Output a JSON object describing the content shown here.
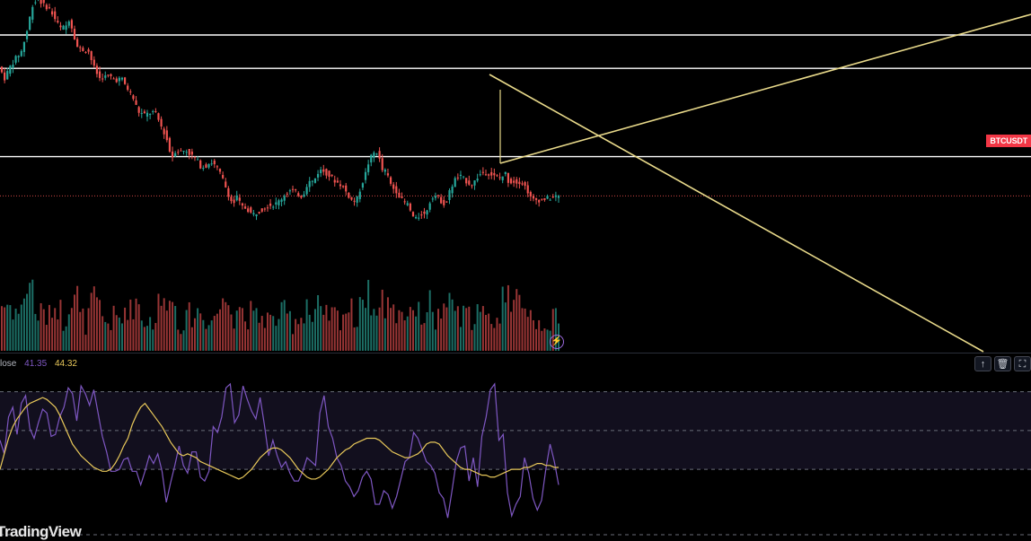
{
  "symbol": "BTCUSDT",
  "watermark": "TradingView",
  "rsi_legend": {
    "label": "lose",
    "rsi_value": "41.35",
    "ma_value": "44.32"
  },
  "pane_buttons": [
    {
      "name": "move-up-icon",
      "glyph": "↑"
    },
    {
      "name": "delete-icon",
      "glyph": "🗑"
    },
    {
      "name": "maximize-icon",
      "glyph": "⛶"
    }
  ],
  "colors": {
    "up": "#26a69a",
    "down": "#ef5350",
    "up_vol": "#1f7a70",
    "down_vol": "#a83b3b",
    "drawing": "#e8d98a",
    "levels": "#ffffff",
    "rsi": "#7e57c2",
    "rsi_ma": "#e8c85a",
    "rsi_band": "#120f1e"
  },
  "chart_data": [
    {
      "type": "candlestick",
      "series": [
        {
          "name": "BTCUSDT",
          "anchors": [
            [
              0,
              195
            ],
            [
              4,
              188
            ],
            [
              8,
              195
            ],
            [
              12,
              200
            ],
            [
              16,
              204
            ],
            [
              20,
              216
            ],
            [
              24,
              232
            ],
            [
              28,
              236
            ],
            [
              32,
              232
            ],
            [
              36,
              230
            ],
            [
              40,
              224
            ],
            [
              44,
              218
            ],
            [
              48,
              219
            ],
            [
              50,
              224
            ],
            [
              53,
              217
            ],
            [
              56,
              207
            ],
            [
              60,
              205
            ],
            [
              64,
              205
            ],
            [
              68,
              195
            ],
            [
              72,
              188
            ],
            [
              76,
              189
            ],
            [
              80,
              189
            ],
            [
              84,
              187
            ],
            [
              88,
              188
            ],
            [
              92,
              182
            ],
            [
              96,
              177
            ],
            [
              100,
              168
            ],
            [
              104,
              166
            ],
            [
              108,
              167
            ],
            [
              112,
              168
            ],
            [
              116,
              160
            ],
            [
              120,
              153
            ],
            [
              124,
              140
            ],
            [
              127,
              145
            ],
            [
              130,
              144
            ],
            [
              134,
              145
            ],
            [
              138,
              142
            ],
            [
              142,
              139
            ],
            [
              145,
              135
            ],
            [
              148,
              135
            ],
            [
              152,
              138
            ],
            [
              156,
              135
            ],
            [
              160,
              129
            ],
            [
              164,
              120
            ],
            [
              168,
              112
            ],
            [
              171,
              117
            ],
            [
              174,
              111
            ],
            [
              178,
              110
            ],
            [
              182,
              106
            ],
            [
              186,
              108
            ],
            [
              190,
              110
            ],
            [
              194,
              112
            ],
            [
              198,
              112
            ],
            [
              202,
              115
            ],
            [
              206,
              119
            ],
            [
              210,
              121
            ],
            [
              214,
              119
            ],
            [
              218,
              117
            ],
            [
              222,
              126
            ],
            [
              226,
              126
            ],
            [
              230,
              133
            ],
            [
              234,
              132
            ],
            [
              238,
              129
            ],
            [
              242,
              126
            ],
            [
              246,
              124
            ],
            [
              250,
              119
            ],
            [
              254,
              114
            ],
            [
              257,
              115
            ],
            [
              260,
              123
            ],
            [
              263,
              130
            ],
            [
              266,
              139
            ],
            [
              269,
              143
            ],
            [
              272,
              144
            ],
            [
              275,
              133
            ],
            [
              278,
              132
            ],
            [
              282,
              123
            ],
            [
              286,
              120
            ],
            [
              290,
              114
            ],
            [
              294,
              112
            ],
            [
              297,
              105
            ],
            [
              300,
              103
            ],
            [
              303,
              107
            ],
            [
              306,
              106
            ],
            [
              309,
              113
            ],
            [
              312,
              118
            ],
            [
              315,
              117
            ],
            [
              318,
              114
            ],
            [
              321,
              112
            ],
            [
              324,
              121
            ],
            [
              328,
              128
            ],
            [
              332,
              129
            ],
            [
              336,
              126
            ],
            [
              340,
              124
            ],
            [
              344,
              129
            ],
            [
              348,
              132
            ],
            [
              352,
              131
            ],
            [
              356,
              129
            ],
            [
              360,
              128
            ],
            [
              364,
              131
            ],
            [
              366,
              126
            ],
            [
              368,
              126
            ],
            [
              370,
              126
            ],
            [
              372,
              126
            ],
            [
              374,
              126
            ],
            [
              376,
              125
            ],
            [
              378,
              123
            ],
            [
              380,
              120
            ],
            [
              382,
              116
            ],
            [
              384,
              115
            ],
            [
              387,
              115
            ],
            [
              390,
              115
            ],
            [
              393,
              116
            ],
            [
              396,
              116
            ],
            [
              400,
              117
            ]
          ]
        }
      ],
      "axis_ranges": {
        "x": [
          0,
          400
        ],
        "y": [
          95,
          235
        ]
      },
      "volume_range": [
        0,
        100
      ],
      "horizontal_levels": [
        214,
        194,
        141
      ],
      "grid": false,
      "xlabel": "",
      "ylabel": ""
    },
    {
      "type": "line",
      "series": [
        {
          "name": "",
          "values": [
            45,
            38,
            57,
            62,
            48,
            64,
            68,
            51,
            46,
            54,
            61,
            59,
            47,
            48,
            57,
            62,
            72,
            69,
            55,
            73,
            69,
            63,
            71,
            59,
            47,
            39,
            29,
            29,
            30,
            35,
            36,
            29,
            29,
            22,
            29,
            37,
            33,
            38,
            29,
            13,
            23,
            32,
            42,
            32,
            28,
            39,
            39,
            26,
            24,
            29,
            52,
            49,
            57,
            72,
            74,
            54,
            58,
            73,
            66,
            60,
            56,
            67,
            53,
            37,
            45,
            37,
            31,
            34,
            28,
            24,
            24,
            29,
            36,
            34,
            32,
            59,
            68,
            52,
            46,
            36,
            32,
            24,
            21,
            16,
            19,
            26,
            29,
            25,
            12,
            12,
            19,
            17,
            10,
            16,
            25,
            34,
            36,
            49,
            46,
            40,
            34,
            32,
            28,
            18,
            15,
            5,
            19,
            34,
            41,
            42,
            24,
            36,
            21,
            47,
            57,
            71,
            74,
            45,
            48,
            18,
            6,
            12,
            16,
            36,
            28,
            15,
            9,
            14,
            30,
            43,
            34,
            22
          ]
        },
        {
          "name": "",
          "values": [
            30,
            38,
            46,
            52,
            56,
            59,
            62,
            64,
            65,
            66,
            67,
            66,
            64,
            62,
            58,
            53,
            48,
            43,
            40,
            37,
            35,
            33,
            31,
            30,
            29,
            29,
            30,
            33,
            37,
            42,
            46,
            53,
            58,
            62,
            64,
            61,
            58,
            55,
            52,
            48,
            44,
            41,
            38,
            37,
            38,
            37,
            36,
            34,
            33,
            32,
            31,
            30,
            29,
            28,
            27,
            26,
            25,
            26,
            28,
            30,
            33,
            36,
            38,
            40,
            41,
            41,
            40,
            38,
            36,
            33,
            30,
            28,
            26,
            25,
            25,
            26,
            28,
            30,
            33,
            36,
            38,
            40,
            41,
            43,
            44,
            45,
            46,
            46,
            46,
            45,
            43,
            41,
            39,
            38,
            37,
            36,
            36,
            37,
            38,
            40,
            43,
            44,
            44,
            43,
            40,
            37,
            35,
            33,
            31,
            30,
            30,
            29,
            28,
            27,
            27,
            26,
            26,
            27,
            28,
            29,
            30,
            30,
            30,
            31,
            31,
            32,
            33,
            33,
            32,
            32,
            31,
            31
          ]
        }
      ],
      "axis_ranges": {
        "x": [
          0,
          131
        ],
        "y": [
          0,
          80
        ]
      },
      "reference_lines": [
        70,
        50,
        30
      ],
      "band": [
        30,
        70
      ],
      "grid": false,
      "xlabel": "",
      "ylabel": ""
    }
  ]
}
